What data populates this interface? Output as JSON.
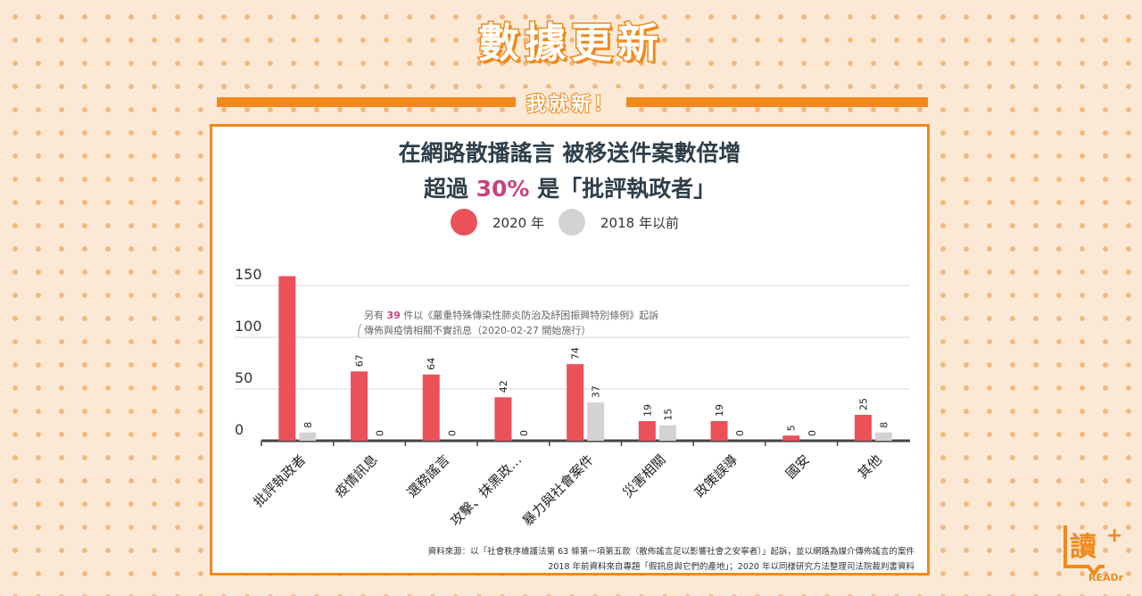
{
  "header": {
    "title": "數據更新",
    "subtitle": "我就新！"
  },
  "card": {
    "title_line1": "在網路散播謠言 被移送件案數倍增",
    "title_line2_pre": "超過 ",
    "title_line2_highlight": "30%",
    "title_line2_post": " 是「批評執政者」"
  },
  "annotation": {
    "line1_pre": "另有 ",
    "line1_num": "39",
    "line1_post": " 件以《嚴重特殊傳染性肺炎防治及紓困振興特別條例》起訴",
    "line2": "傳佈與疫情相關不實訊息（2020-02-27 開始施行）"
  },
  "source": {
    "line1": "資料來源：以「社會秩序維護法第 63 條第一項第五款（散佈謠言足以影響社會之安寧者）」起訴，並以網路為媒介傳佈謠言的案件",
    "line2": "2018 年前資料來自專題「假訊息與它們的產地」；2020 年以同樣研究方法整理司法院裁判書資料"
  },
  "logo": {
    "text": "讀",
    "plus": "+",
    "brand": "READr"
  },
  "colors": {
    "series_2020": "#ea5158",
    "series_2018": "#d5d3d1",
    "accent": "#f08a1c",
    "highlight": "#c8427e"
  },
  "chart_data": {
    "type": "bar",
    "categories": [
      "批評執政者",
      "疫情訊息",
      "選務謠言",
      "攻擊、抹黑政…",
      "暴力與社會案件",
      "災害相關",
      "政策誤導",
      "國安",
      "其他"
    ],
    "series": [
      {
        "name": "2020 年",
        "values": [
          159,
          67,
          64,
          42,
          74,
          19,
          19,
          5,
          25
        ],
        "labels": [
          "",
          "67",
          "64",
          "42",
          "74",
          "19",
          "19",
          "5",
          "25"
        ]
      },
      {
        "name": "2018 年以前",
        "values": [
          8,
          0,
          0,
          0,
          37,
          15,
          0,
          0,
          8
        ],
        "labels": [
          "8",
          "0",
          "0",
          "0",
          "37",
          "15",
          "0",
          "0",
          "8"
        ]
      }
    ],
    "yticks": [
      0,
      50,
      100,
      150
    ],
    "ylim": [
      0,
      165
    ],
    "grid": true,
    "legend": "top-center"
  }
}
